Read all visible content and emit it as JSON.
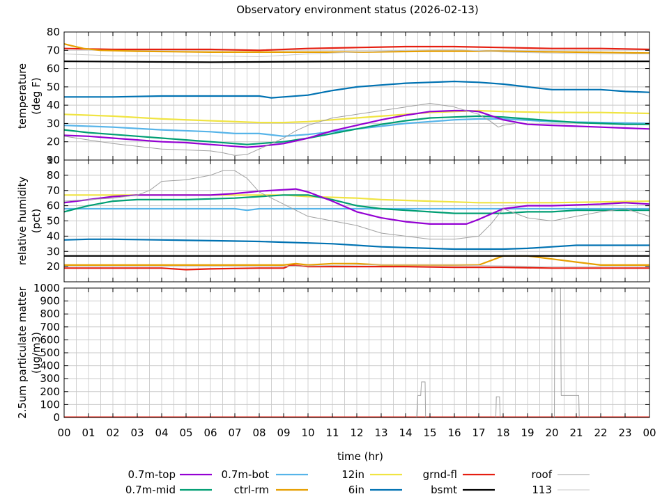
{
  "chart_data": {
    "type": "line",
    "title": "Observatory environment status (2026-02-13)",
    "xlabel": "time (hr)",
    "x_ticks": [
      "00",
      "01",
      "02",
      "03",
      "04",
      "05",
      "06",
      "07",
      "08",
      "09",
      "10",
      "11",
      "12",
      "13",
      "14",
      "15",
      "16",
      "17",
      "18",
      "19",
      "20",
      "21",
      "22",
      "23",
      "00"
    ],
    "xlim": [
      0,
      24
    ],
    "grid": true,
    "legend_position": "bottom",
    "colors": {
      "0.7m-top": "#9400d3",
      "0.7m-mid": "#009e73",
      "0.7m-bot": "#56b4e9",
      "ctrl-rm": "#e69f00",
      "12in": "#f0e442",
      "6in": "#0072b2",
      "grnd-fl": "#e51e10",
      "bsmt": "#000000",
      "roof": "#a0a0a0",
      "113": "#c8c8c8"
    },
    "legend": [
      {
        "name": "0.7m-top"
      },
      {
        "name": "0.7m-bot"
      },
      {
        "name": "12in"
      },
      {
        "name": "grnd-fl"
      },
      {
        "name": "roof"
      },
      {
        "name": "0.7m-mid"
      },
      {
        "name": "ctrl-rm"
      },
      {
        "name": "6in"
      },
      {
        "name": "bsmt"
      },
      {
        "name": "113"
      }
    ],
    "panels": [
      {
        "id": "temperature",
        "ylabel_lines": [
          "temperature",
          "(deg F)"
        ],
        "ylim": [
          10,
          80
        ],
        "y_ticks": [
          "10",
          "20",
          "30",
          "40",
          "50",
          "60",
          "70",
          "80"
        ],
        "series": [
          {
            "name": "grnd-fl",
            "x": [
              0,
              2,
              4,
              6,
              8,
              10,
              12,
              14,
              16,
              18,
              20,
              22,
              24
            ],
            "y": [
              71,
              70.5,
              70.5,
              70.5,
              70,
              71,
              71.5,
              72,
              72,
              71.5,
              71,
              71,
              70.5
            ]
          },
          {
            "name": "ctrl-rm",
            "x": [
              0,
              0.3,
              0.8,
              1.5,
              3,
              6,
              9,
              12,
              15,
              18,
              21,
              24
            ],
            "y": [
              73.5,
              72.5,
              71,
              70,
              69.5,
              69,
              69,
              69,
              69.5,
              69.5,
              69,
              68.5
            ]
          },
          {
            "name": "113",
            "x": [
              0,
              2,
              4,
              6,
              8,
              10,
              12,
              14,
              16,
              18,
              20,
              22,
              24
            ],
            "y": [
              68,
              67,
              67,
              67,
              66.5,
              68,
              69,
              70,
              70.5,
              69,
              68.5,
              68,
              68
            ]
          },
          {
            "name": "bsmt",
            "x": [
              0,
              6,
              12,
              18,
              24
            ],
            "y": [
              64,
              63.5,
              64,
              64,
              64
            ]
          },
          {
            "name": "6in",
            "x": [
              0,
              2,
              4,
              6,
              8,
              8.5,
              9,
              10,
              11,
              12,
              13,
              14,
              15,
              16,
              17,
              18,
              19,
              20,
              21,
              22,
              23,
              24
            ],
            "y": [
              44.5,
              44.5,
              45,
              45,
              45,
              44,
              44.5,
              45.5,
              48,
              50,
              51,
              52,
              52.5,
              53,
              52.5,
              51.5,
              50,
              48.5,
              48.5,
              48.5,
              47.5,
              47
            ]
          },
          {
            "name": "12in",
            "x": [
              0,
              2,
              4,
              6,
              8,
              9,
              10,
              11,
              12,
              13,
              14,
              15,
              16,
              17,
              18,
              20,
              22,
              24
            ],
            "y": [
              35,
              34,
              32.5,
              31.5,
              30.5,
              30.5,
              31,
              32,
              33,
              34,
              35,
              36,
              36.5,
              37,
              36.5,
              36,
              36,
              35.5
            ]
          },
          {
            "name": "0.7m-bot",
            "x": [
              0,
              2,
              4,
              6,
              7,
              8,
              9,
              10,
              11,
              12,
              13,
              14,
              15,
              16,
              17,
              18,
              20,
              22,
              24
            ],
            "y": [
              29,
              28,
              26.5,
              25.5,
              24.5,
              24.5,
              23,
              24,
              25.5,
              27,
              28.5,
              30,
              31,
              32,
              32.5,
              32.5,
              31,
              30.5,
              30
            ]
          },
          {
            "name": "0.7m-mid",
            "x": [
              0,
              1,
              2,
              3,
              4,
              5,
              6,
              7,
              7.5,
              8,
              9,
              10,
              11,
              12,
              13,
              14,
              15,
              16,
              17,
              18,
              19,
              20,
              21,
              22,
              23,
              24
            ],
            "y": [
              26.5,
              25,
              24,
              23,
              22,
              21,
              20,
              19,
              18.5,
              19,
              20,
              22,
              24.5,
              27,
              29.5,
              31.5,
              33,
              33.5,
              34,
              33.5,
              32.5,
              31.5,
              30.5,
              30,
              29.5,
              29.5
            ]
          },
          {
            "name": "0.7m-top",
            "x": [
              0,
              1,
              2,
              3,
              4,
              5,
              6,
              7,
              7.5,
              8,
              9,
              10,
              11,
              12,
              13,
              14,
              15,
              16,
              16.5,
              17,
              18,
              19,
              20,
              21,
              22,
              23,
              24
            ],
            "y": [
              23.5,
              23,
              22,
              21,
              20,
              19.5,
              18.5,
              17.5,
              17,
              17.5,
              19,
              22,
              26,
              29,
              32,
              34.5,
              36.5,
              37,
              37,
              36.5,
              32,
              29.5,
              29,
              28.5,
              28,
              27.5,
              27
            ]
          },
          {
            "name": "roof",
            "x": [
              0,
              1,
              2,
              3,
              4,
              5,
              6,
              6.5,
              7,
              7.5,
              8,
              8.5,
              9,
              9.5,
              10,
              10.5,
              11,
              12,
              13,
              14,
              15,
              15.5,
              16,
              17,
              17.5,
              17.8,
              18,
              18.5
            ],
            "y": [
              23,
              21,
              19,
              17.5,
              16,
              15.5,
              15,
              14,
              12.5,
              13,
              16,
              19,
              22,
              26,
              29,
              31,
              33,
              35,
              37,
              39,
              41,
              40,
              39,
              35,
              31,
              28,
              29,
              30
            ]
          }
        ]
      },
      {
        "id": "humidity",
        "ylabel_lines": [
          "relative humidity",
          "(pct)"
        ],
        "ylim": [
          10,
          90
        ],
        "y_ticks": [
          "20",
          "30",
          "40",
          "50",
          "60",
          "70",
          "80",
          "90"
        ],
        "series": [
          {
            "name": "grnd-fl",
            "x": [
              0,
              2,
              4,
              5,
              6,
              8,
              9,
              9.3,
              10,
              12,
              14,
              16,
              18,
              20,
              22,
              24
            ],
            "y": [
              19,
              19,
              19,
              18,
              18.5,
              19,
              19,
              21,
              20,
              20,
              20,
              19.5,
              19.5,
              19,
              19,
              19
            ]
          },
          {
            "name": "ctrl-rm",
            "x": [
              0,
              2,
              4,
              6,
              8,
              9,
              9.5,
              10,
              11,
              12,
              13,
              14,
              15,
              16,
              17,
              17.5,
              18,
              19,
              20,
              21,
              22,
              23,
              24
            ],
            "y": [
              21,
              21,
              21,
              21,
              21,
              21,
              22,
              21,
              22,
              22,
              21,
              21,
              21,
              21,
              21,
              24,
              27,
              27,
              25,
              23,
              21,
              21,
              21
            ]
          },
          {
            "name": "113",
            "x": [
              0,
              4,
              8,
              12,
              16,
              20,
              24
            ],
            "y": [
              20,
              20,
              20,
              21,
              21,
              20,
              20
            ]
          },
          {
            "name": "bsmt",
            "x": [
              0,
              4,
              8,
              12,
              16,
              18,
              20,
              24
            ],
            "y": [
              27,
              27,
              27,
              27,
              27,
              27,
              27,
              27
            ]
          },
          {
            "name": "6in",
            "x": [
              0,
              1,
              2,
              4,
              6,
              8,
              9,
              10,
              11,
              12,
              13,
              14,
              15,
              16,
              17,
              18,
              19,
              20,
              21,
              22,
              23,
              24
            ],
            "y": [
              37.5,
              38,
              38,
              37.5,
              37,
              36.5,
              36,
              35.5,
              35,
              34,
              33,
              32.5,
              32,
              31.5,
              31.5,
              31.5,
              32,
              33,
              34,
              34,
              34,
              34
            ]
          },
          {
            "name": "12in",
            "x": [
              0,
              2,
              4,
              6,
              8,
              9,
              10,
              11,
              12,
              13,
              14,
              15,
              16,
              17,
              18,
              20,
              22,
              24
            ],
            "y": [
              67,
              67,
              67,
              67,
              67,
              67,
              66,
              65.5,
              65,
              64,
              63.5,
              63,
              62.5,
              62,
              62,
              62,
              62.5,
              63
            ]
          },
          {
            "name": "0.7m-bot",
            "x": [
              0,
              2,
              4,
              6,
              7,
              7.5,
              8,
              10,
              12,
              14,
              16,
              18,
              20,
              22,
              24
            ],
            "y": [
              58,
              58,
              58,
              58,
              58,
              57,
              58,
              58,
              58,
              58,
              58,
              58,
              58,
              58,
              58
            ]
          },
          {
            "name": "0.7m-mid",
            "x": [
              0,
              1,
              2,
              3,
              4,
              5,
              6,
              7,
              8,
              9,
              10,
              11,
              12,
              13,
              14,
              15,
              16,
              17,
              18,
              19,
              20,
              21,
              22,
              23,
              24
            ],
            "y": [
              56,
              60,
              63,
              64,
              64,
              64,
              64.5,
              65,
              66,
              67,
              67,
              64,
              60,
              58,
              57,
              56,
              55,
              55,
              55,
              56,
              56,
              57,
              57,
              57,
              57
            ]
          },
          {
            "name": "0.7m-top",
            "x": [
              0,
              1,
              2,
              3,
              4,
              5,
              6,
              7,
              8,
              9,
              9.5,
              10,
              11,
              12,
              13,
              14,
              15,
              16,
              16.5,
              17,
              18,
              19,
              20,
              21,
              22,
              23,
              24
            ],
            "y": [
              62,
              64,
              66,
              67,
              67,
              67,
              67,
              68,
              69.5,
              70.5,
              71,
              69,
              63,
              56,
              52,
              49.5,
              48,
              48,
              48,
              51,
              58,
              60,
              60,
              60.5,
              61,
              62,
              61
            ]
          },
          {
            "name": "roof",
            "x": [
              0,
              1,
              2,
              3,
              3.5,
              4,
              5,
              6,
              6.5,
              7,
              7.5,
              8,
              9,
              10,
              11,
              12,
              13,
              14,
              15,
              16,
              17,
              17.5,
              18,
              18.5,
              19,
              20,
              21,
              22,
              23,
              24
            ],
            "y": [
              63,
              64,
              65,
              67,
              70,
              76,
              77,
              80,
              83,
              83,
              78,
              69,
              61,
              53,
              50,
              47,
              42,
              40,
              38,
              38,
              40,
              48,
              58,
              55,
              52,
              50,
              53,
              56,
              58,
              53
            ]
          }
        ]
      },
      {
        "id": "pm25",
        "ylabel_lines": [
          "2.5um particulate matter",
          "(ug/m3)"
        ],
        "ylim": [
          0,
          1000
        ],
        "y_ticks": [
          "0",
          "100",
          "200",
          "300",
          "400",
          "500",
          "600",
          "700",
          "800",
          "900",
          "1000"
        ],
        "series": [
          {
            "name": "grnd-fl",
            "x": [
              0,
              24
            ],
            "y": [
              2,
              2
            ]
          },
          {
            "name": "roof",
            "x": [
              0,
              14.45,
              14.5,
              14.62,
              14.65,
              14.8,
              14.82,
              14.9,
              14.95,
              17.7,
              17.72,
              17.85,
              17.88,
              20.1,
              20.12,
              20.35,
              20.38,
              21.1,
              21.12,
              24
            ],
            "y": [
              0,
              0,
              170,
              170,
              275,
              275,
              0,
              0,
              0,
              0,
              160,
              160,
              0,
              0,
              1000,
              1000,
              170,
              170,
              0,
              0
            ]
          }
        ]
      }
    ]
  }
}
